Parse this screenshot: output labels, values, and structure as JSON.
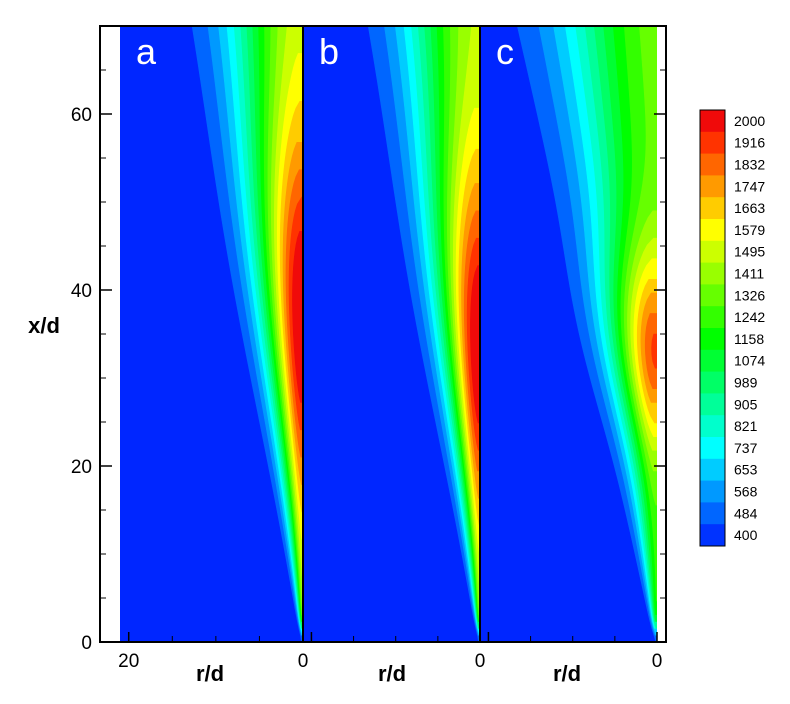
{
  "chart_data": {
    "type": "heatmap",
    "title": "",
    "xlabel": "r/d",
    "ylabel": "x/d",
    "ylim": [
      0,
      70
    ],
    "yticks": [
      0,
      20,
      40,
      60
    ],
    "panels": [
      {
        "label": "a",
        "xlim": [
          21,
          0
        ],
        "xtick_labels": [
          {
            "value": 20,
            "text": "20"
          },
          {
            "value": 0,
            "text": "0"
          }
        ],
        "peak_band": [
          22,
          50
        ],
        "spread": 1.0
      },
      {
        "label": "b",
        "xlim": [
          21,
          0
        ],
        "xtick_labels": [
          {
            "value": 0,
            "text": "0"
          }
        ],
        "peak_band": [
          20,
          46
        ],
        "spread": 1.05
      },
      {
        "label": "c",
        "xlim": [
          21,
          0
        ],
        "xtick_labels": [
          {
            "value": 0,
            "text": "0"
          }
        ],
        "peak_band": [
          26,
          40
        ],
        "spread": 1.35
      }
    ],
    "colorbar": {
      "levels": [
        "2000",
        "1916",
        "1832",
        "1747",
        "1663",
        "1579",
        "1495",
        "1411",
        "1326",
        "1242",
        "1158",
        "1074",
        "989",
        "905",
        "821",
        "737",
        "653",
        "568",
        "484",
        "400"
      ],
      "colors": [
        "#f00a0a",
        "#ff3300",
        "#ff6600",
        "#ff9a00",
        "#ffcc00",
        "#ffff00",
        "#ccff00",
        "#99ff00",
        "#66ff00",
        "#33ff00",
        "#00ff00",
        "#00ff33",
        "#00ff66",
        "#00ff99",
        "#00ffcc",
        "#00ffff",
        "#00ccff",
        "#0099ff",
        "#0066ff",
        "#0033ff"
      ],
      "background": "#0026ff"
    },
    "legend_placement": "right",
    "grid": false
  }
}
